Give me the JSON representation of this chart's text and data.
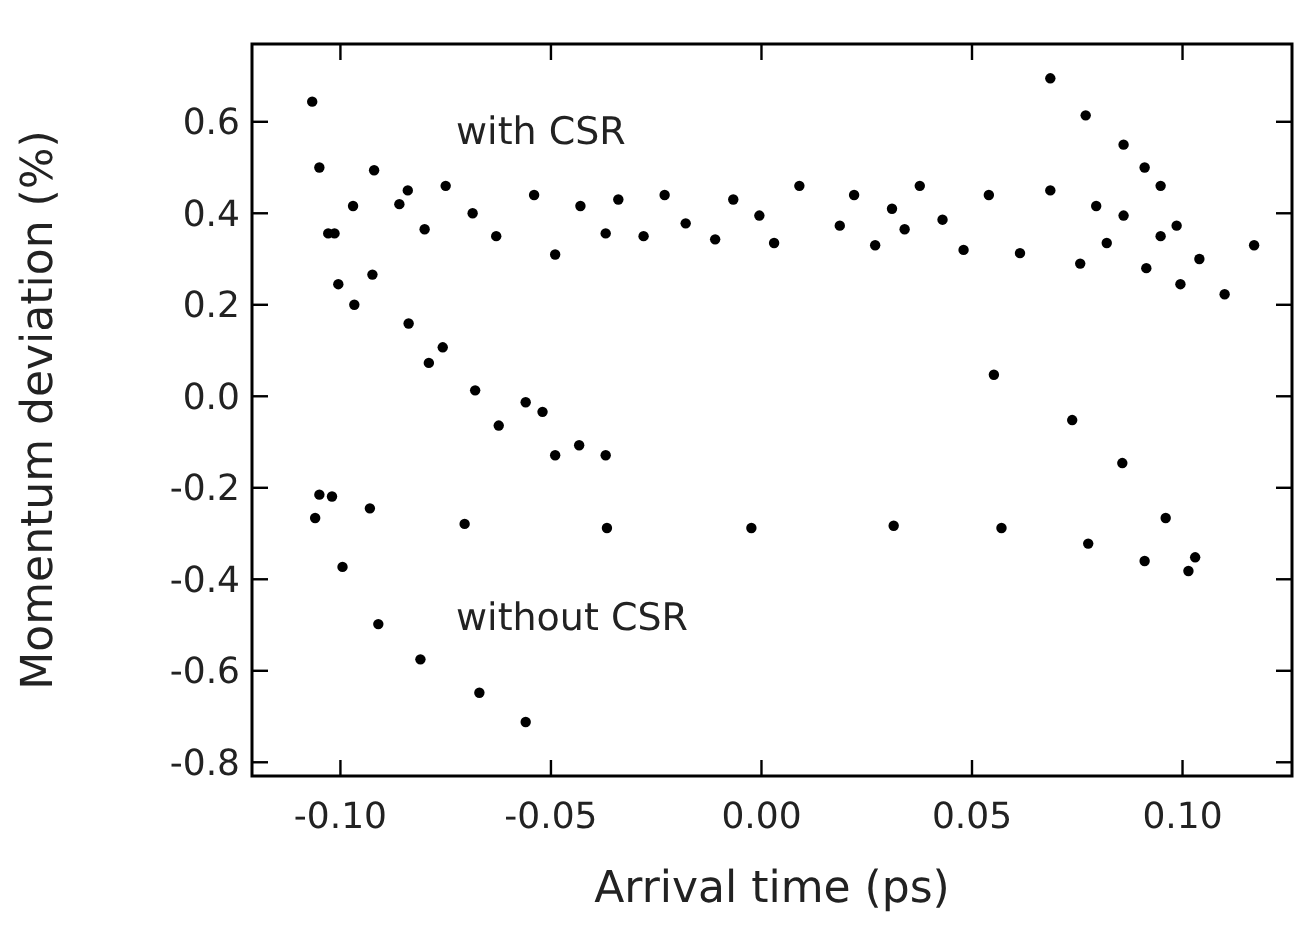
{
  "chart_data": {
    "type": "scatter",
    "xlabel": "Arrival time (ps)",
    "ylabel": "Momentum deviation (%)",
    "xlim": [
      -0.121,
      0.126
    ],
    "ylim": [
      -0.83,
      0.77
    ],
    "xticks": [
      {
        "value": -0.1,
        "label": "-0.10"
      },
      {
        "value": -0.05,
        "label": "-0.05"
      },
      {
        "value": 0,
        "label": "0.00"
      },
      {
        "value": 0.05,
        "label": "0.05"
      },
      {
        "value": 0.1,
        "label": "0.10"
      }
    ],
    "yticks": [
      {
        "value": 0.6,
        "label": "0.6"
      },
      {
        "value": 0.4,
        "label": "0.4"
      },
      {
        "value": 0.2,
        "label": "0.2"
      },
      {
        "value": 0,
        "label": "0.0"
      },
      {
        "value": -0.2,
        "label": "-0.2"
      },
      {
        "value": -0.4,
        "label": "-0.4"
      },
      {
        "value": -0.6,
        "label": "-0.6"
      },
      {
        "value": -0.8,
        "label": "-0.8"
      }
    ],
    "marker": "circle",
    "series": [
      {
        "name": "with CSR",
        "color": "#000000",
        "x": [
          -0.1067,
          -0.105,
          -0.1029,
          -0.1014,
          -0.097,
          -0.092,
          -0.086,
          -0.084,
          -0.08,
          -0.075,
          -0.0686,
          -0.063,
          -0.054,
          -0.049,
          -0.043,
          -0.037,
          -0.034,
          -0.028,
          -0.023,
          -0.018,
          -0.011,
          -0.0067,
          -0.0005,
          0.003,
          0.009,
          0.0186,
          0.022,
          0.027,
          0.031,
          0.034,
          0.0376,
          0.043,
          0.048,
          0.054,
          0.0614,
          0.0686,
          0.0757,
          0.0795,
          0.082,
          0.086,
          0.0914,
          0.0948,
          0.0995,
          0.104,
          0.11,
          0.117,
          0.0686,
          0.077,
          0.086,
          0.091,
          0.0948,
          0.0986,
          -0.1005,
          -0.0967,
          -0.0924,
          -0.0838,
          -0.079,
          -0.0757,
          -0.068,
          -0.0624,
          -0.056,
          -0.052,
          -0.049,
          -0.0433,
          -0.037
        ],
        "values": [
          0.644,
          0.5,
          0.356,
          0.356,
          0.416,
          0.494,
          0.42,
          0.45,
          0.365,
          0.46,
          0.4,
          0.35,
          0.44,
          0.31,
          0.416,
          0.356,
          0.43,
          0.35,
          0.44,
          0.378,
          0.343,
          0.43,
          0.395,
          0.335,
          0.46,
          0.373,
          0.44,
          0.33,
          0.41,
          0.365,
          0.46,
          0.386,
          0.32,
          0.44,
          0.313,
          0.45,
          0.29,
          0.416,
          0.335,
          0.395,
          0.28,
          0.35,
          0.245,
          0.3,
          0.223,
          0.33,
          0.695,
          0.614,
          0.55,
          0.5,
          0.46,
          0.373,
          0.245,
          0.2,
          0.266,
          0.159,
          0.073,
          0.107,
          0.013,
          -0.064,
          -0.013,
          -0.034,
          -0.129,
          -0.107,
          -0.129
        ]
      },
      {
        "name": "without CSR",
        "color": "#000000",
        "x": [
          -0.105,
          -0.106,
          -0.0995,
          -0.091,
          -0.081,
          -0.067,
          -0.056,
          -0.102,
          -0.093,
          -0.0705,
          -0.0367,
          -0.0024,
          0.0314,
          0.057,
          0.0776,
          0.091,
          0.1014,
          0.103,
          0.096,
          0.0857,
          0.0738,
          0.0552
        ],
        "values": [
          -0.215,
          -0.266,
          -0.373,
          -0.498,
          -0.575,
          -0.648,
          -0.712,
          -0.219,
          -0.245,
          -0.279,
          -0.288,
          -0.288,
          -0.283,
          -0.288,
          -0.322,
          -0.36,
          -0.382,
          -0.352,
          -0.266,
          -0.146,
          -0.052,
          0.047
        ]
      }
    ]
  }
}
